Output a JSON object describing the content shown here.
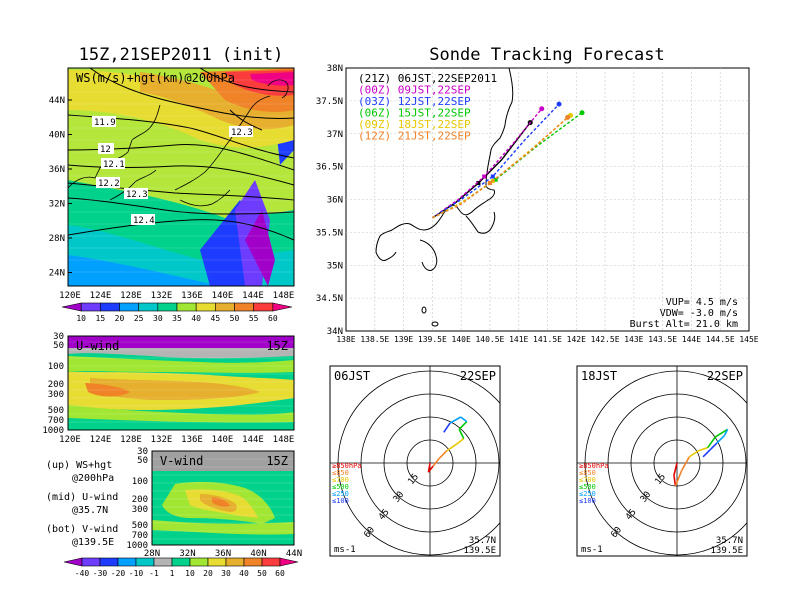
{
  "left_title": "15Z,21SEP2011 (init)",
  "right_title": "Sonde Tracking Forecast",
  "upper_map": {
    "label": "WS(m/s)+hgt(km)@200hPa",
    "lat_ticks": [
      "44N",
      "40N",
      "36N",
      "32N",
      "28N",
      "24N"
    ],
    "lon_ticks": [
      "120E",
      "124E",
      "128E",
      "132E",
      "136E",
      "140E",
      "144E",
      "148E"
    ],
    "contour_labels": [
      "11.9",
      "12",
      "12.1",
      "12.2",
      "12.3",
      "12.4",
      "12.3"
    ],
    "colorbar_ticks": [
      "10",
      "15",
      "20",
      "25",
      "30",
      "35",
      "40",
      "45",
      "50",
      "55",
      "60"
    ],
    "colorbar_colors": [
      "#a000c8",
      "#6e3cff",
      "#1e3cff",
      "#00a0ff",
      "#00c8c8",
      "#00d28c",
      "#a0e632",
      "#e6dc32",
      "#e6af2d",
      "#f08228",
      "#fa3c3c",
      "#f00082"
    ]
  },
  "u_section": {
    "label": "U-wind",
    "time": "15Z",
    "p_ticks": [
      "30",
      "50",
      "100",
      "200",
      "300",
      "500",
      "700",
      "1000"
    ],
    "lon_ticks": [
      "120E",
      "124E",
      "128E",
      "132E",
      "136E",
      "140E",
      "144E",
      "148E"
    ]
  },
  "v_section": {
    "label": "V-wind",
    "time": "15Z",
    "p_ticks": [
      "30",
      "50",
      "100",
      "200",
      "300",
      "500",
      "700",
      "1000"
    ],
    "lat_ticks": [
      "28N",
      "32N",
      "36N",
      "40N",
      "44N"
    ],
    "colorbar_ticks": [
      "-40",
      "-30",
      "-20",
      "-10",
      "-1",
      "1",
      "10",
      "20",
      "30",
      "40",
      "50",
      "60"
    ],
    "colorbar_colors": [
      "#a000c8",
      "#6e3cff",
      "#1e3cff",
      "#00a0ff",
      "#00c8c8",
      "#b4b4b4",
      "#00d28c",
      "#a0e632",
      "#e6dc32",
      "#e6af2d",
      "#f08228",
      "#fa3c3c",
      "#f00082"
    ]
  },
  "notes": [
    {
      "label": "(up) WS+hgt",
      "sub": "@200hPa"
    },
    {
      "label": "(mid) U-wind",
      "sub": "@35.7N"
    },
    {
      "label": "(bot) V-wind",
      "sub": "@139.5E"
    }
  ],
  "track_map": {
    "lat_ticks": [
      "38N",
      "37.5N",
      "37N",
      "36.5N",
      "36N",
      "35.5N",
      "35N",
      "34.5N",
      "34N"
    ],
    "lon_ticks": [
      "138E",
      "138.5E",
      "139E",
      "139.5E",
      "140E",
      "140.5E",
      "141E",
      "141.5E",
      "142E",
      "142.5E",
      "143E",
      "143.5E",
      "144E",
      "144.5E",
      "145E"
    ],
    "legend": [
      {
        "label": "(21Z) 06JST,22SEP2011",
        "color": "#000000"
      },
      {
        "label": "(00Z) 09JST,22SEP",
        "color": "#c800c8"
      },
      {
        "label": "(03Z) 12JST,22SEP",
        "color": "#1e3cff"
      },
      {
        "label": "(06Z) 15JST,22SEP",
        "color": "#00c800"
      },
      {
        "label": "(09Z) 18JST,22SEP",
        "color": "#e6c800"
      },
      {
        "label": "(12Z) 21JST,22SEP",
        "color": "#f08228"
      }
    ],
    "info": [
      "VUP= 4.5 m/s",
      "VDW= -3.0 m/s",
      "Burst Alt= 21.0 km"
    ]
  },
  "hodo_left": {
    "time": "06JST",
    "date": "22SEP",
    "ring_labels": [
      "15",
      "30",
      "45",
      "60"
    ],
    "levels": [
      "≥850hPa",
      "≤850",
      "≤700",
      "≤500",
      "≤250",
      "≤100"
    ],
    "level_colors": [
      "#e60000",
      "#f08228",
      "#e6c800",
      "#00c800",
      "#00a0ff",
      "#1e3cff"
    ],
    "unit": "ms-1",
    "loc": [
      "35.7N",
      "139.5E"
    ]
  },
  "hodo_right": {
    "time": "18JST",
    "date": "22SEP",
    "ring_labels": [
      "15",
      "30",
      "45",
      "60"
    ],
    "levels": [
      "≥850hPa",
      "≤850",
      "≤700",
      "≤500",
      "≤250",
      "≤100"
    ],
    "level_colors": [
      "#e60000",
      "#f08228",
      "#e6c800",
      "#00c800",
      "#00a0ff",
      "#1e3cff"
    ],
    "unit": "ms-1",
    "loc": [
      "35.7N",
      "139.5E"
    ]
  },
  "chart_data": {
    "type": "line",
    "title": "Sonde Tracking Forecast",
    "xlim": [
      138,
      145
    ],
    "ylim": [
      34,
      38
    ],
    "launch": {
      "lon": 139.5,
      "lat": 35.72
    },
    "series": [
      {
        "name": "(21Z) 06JST,22SEP2011",
        "color": "#000000",
        "lon": [
          139.5,
          139.9,
          140.3,
          140.7,
          141.2
        ],
        "lat": [
          35.72,
          35.95,
          36.25,
          36.6,
          37.17
        ]
      },
      {
        "name": "(00Z) 09JST,22SEP",
        "color": "#c800c8",
        "lon": [
          139.5,
          139.95,
          140.4,
          140.9,
          141.4
        ],
        "lat": [
          35.72,
          36.0,
          36.35,
          36.85,
          37.38
        ]
      },
      {
        "name": "(03Z) 12JST,22SEP",
        "color": "#1e3cff",
        "lon": [
          139.5,
          140.0,
          140.55,
          141.1,
          141.7
        ],
        "lat": [
          35.72,
          36.0,
          36.35,
          36.9,
          37.45
        ]
      },
      {
        "name": "(06Z) 15JST,22SEP",
        "color": "#00c800",
        "lon": [
          139.5,
          140.0,
          140.6,
          141.3,
          142.1
        ],
        "lat": [
          35.72,
          35.95,
          36.3,
          36.8,
          37.32
        ]
      },
      {
        "name": "(09Z) 18JST,22SEP",
        "color": "#e6c800",
        "lon": [
          139.5,
          140.0,
          140.55,
          141.2,
          141.9
        ],
        "lat": [
          35.72,
          35.95,
          36.28,
          36.75,
          37.28
        ]
      },
      {
        "name": "(12Z) 21JST,22SEP",
        "color": "#f08228",
        "lon": [
          139.5,
          140.0,
          140.5,
          141.15,
          141.85
        ],
        "lat": [
          35.72,
          35.93,
          36.25,
          36.7,
          37.25
        ]
      }
    ],
    "hodographs": [
      {
        "name": "06JST",
        "u": [
          0,
          -1,
          2,
          6,
          11,
          17,
          22,
          19,
          24,
          20,
          13,
          9
        ],
        "v": [
          0,
          -6,
          -2,
          3,
          8,
          12,
          16,
          22,
          27,
          30,
          26,
          20
        ]
      },
      {
        "name": "18JST",
        "u": [
          0,
          -2,
          -1,
          3,
          8,
          14,
          20,
          25,
          33,
          31,
          26,
          22,
          17
        ],
        "v": [
          0,
          -8,
          -15,
          -5,
          4,
          8,
          10,
          17,
          22,
          18,
          13,
          9,
          4
        ]
      }
    ]
  }
}
